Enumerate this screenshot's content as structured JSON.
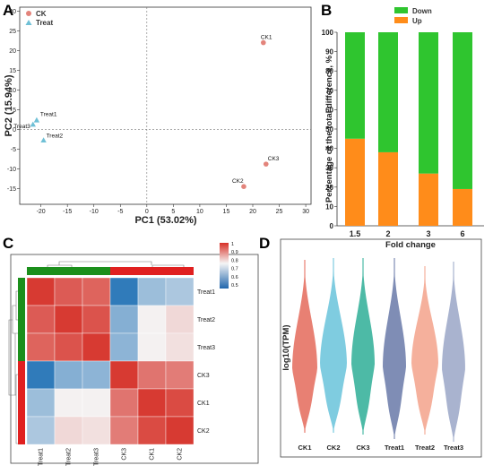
{
  "panels": {
    "A": "A",
    "B": "B",
    "C": "C",
    "D": "D"
  },
  "chart_data": [
    {
      "panel": "A",
      "type": "scatter",
      "xlabel": "PC1 (53.02%)",
      "ylabel": "PC2 (15.94%)",
      "xlim": [
        -24,
        31
      ],
      "ylim": [
        -19,
        31
      ],
      "xticks": [
        -20,
        -15,
        -10,
        -5,
        0,
        5,
        10,
        15,
        20,
        25,
        30
      ],
      "yticks": [
        -15,
        -10,
        -5,
        0,
        5,
        10,
        15,
        20,
        25,
        30
      ],
      "legend_position": "top-left",
      "series": [
        {
          "name": "CK",
          "color": "#e3847b",
          "marker": "circle",
          "points": [
            {
              "label": "CK1",
              "x": 22,
              "y": 22
            },
            {
              "label": "CK2",
              "x": 18.3,
              "y": -14.5
            },
            {
              "label": "CK3",
              "x": 22.5,
              "y": -8.8
            }
          ]
        },
        {
          "name": "Treat",
          "color": "#6fc0d6",
          "marker": "triangle",
          "points": [
            {
              "label": "Treat1",
              "x": -20.8,
              "y": 2.3
            },
            {
              "label": "Treat2",
              "x": -19.5,
              "y": -2.8
            },
            {
              "label": "Treat3",
              "x": -21.5,
              "y": 1.2
            }
          ]
        }
      ]
    },
    {
      "panel": "B",
      "type": "bar",
      "stacked": true,
      "xlabel": "Fold change",
      "ylabel": "Percentage of the total difference, %",
      "ylim": [
        0,
        100
      ],
      "yticks": [
        0,
        10,
        20,
        30,
        40,
        50,
        60,
        70,
        80,
        90,
        100
      ],
      "categories": [
        "1.5",
        "2",
        "3",
        "6"
      ],
      "legend_position": "top",
      "series": [
        {
          "name": "Down",
          "color": "#2fc52f",
          "values": [
            55,
            62,
            73,
            81
          ]
        },
        {
          "name": "Up",
          "color": "#ff8c1a",
          "values": [
            45,
            38,
            27,
            19
          ]
        }
      ]
    },
    {
      "panel": "C",
      "type": "heatmap",
      "rows": [
        "Treat1",
        "Treat2",
        "Treat3",
        "CK3",
        "CK1",
        "CK2"
      ],
      "cols": [
        "Treat1",
        "Treat2",
        "Treat3",
        "CK3",
        "CK1",
        "CK2"
      ],
      "colorbar": {
        "min": 0.5,
        "max": 1,
        "ticks": [
          "1",
          "0.9",
          "0.8",
          "0.7",
          "0.6",
          "0.5"
        ]
      },
      "values": [
        [
          1.0,
          0.96,
          0.95,
          0.52,
          0.66,
          0.68
        ],
        [
          0.96,
          1.0,
          0.97,
          0.63,
          0.78,
          0.81
        ],
        [
          0.95,
          0.97,
          1.0,
          0.64,
          0.78,
          0.8
        ],
        [
          0.52,
          0.63,
          0.64,
          1.0,
          0.93,
          0.92
        ],
        [
          0.66,
          0.78,
          0.78,
          0.93,
          1.0,
          0.98
        ],
        [
          0.68,
          0.81,
          0.8,
          0.92,
          0.98,
          1.0
        ]
      ],
      "group_colors": {
        "Treat": "#1b8f1b",
        "CK": "#e02020"
      }
    },
    {
      "panel": "D",
      "type": "violin",
      "ylabel": "log10(TPM)",
      "categories": [
        "CK1",
        "CK2",
        "CK3",
        "Treat1",
        "Treat2",
        "Treat3"
      ],
      "colors": [
        "#e88073",
        "#7fcce0",
        "#4dbaa6",
        "#7f8db5",
        "#f5b09c",
        "#a9b3cf"
      ]
    }
  ]
}
